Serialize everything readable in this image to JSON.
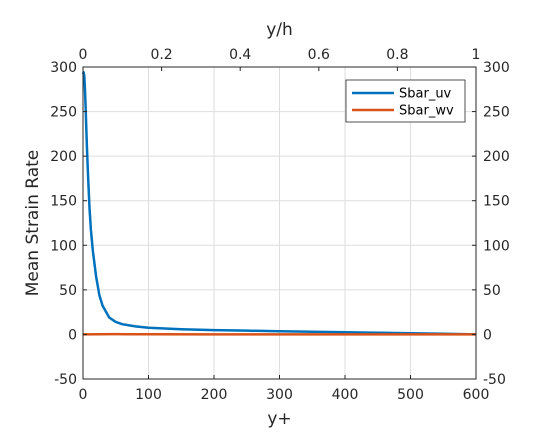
{
  "chart_data": {
    "type": "line",
    "xlabel": "y+",
    "ylabel": "Mean Strain Rate",
    "top_xlabel": "y/h",
    "xlim": [
      0,
      600
    ],
    "ylim": [
      -50,
      300
    ],
    "top_xlim": [
      0,
      1
    ],
    "xticks": [
      0,
      100,
      200,
      300,
      400,
      500,
      600
    ],
    "yticks": [
      -50,
      0,
      50,
      100,
      150,
      200,
      250,
      300
    ],
    "top_xticks": [
      0,
      0.2,
      0.4,
      0.6,
      0.8,
      1
    ],
    "top_xtick_labels": [
      "0",
      "0.2",
      "0.4",
      "0.6",
      "0.8",
      "1"
    ],
    "grid": true,
    "legend_position": "top-right",
    "series": [
      {
        "name": "Sbar_uv",
        "color": "#0072BD",
        "x": [
          0,
          1,
          2,
          3,
          4,
          5,
          6,
          8,
          10,
          12,
          15,
          20,
          25,
          30,
          40,
          50,
          60,
          80,
          100,
          150,
          200,
          250,
          300,
          350,
          400,
          450,
          500,
          550,
          600
        ],
        "y": [
          292,
          294,
          290,
          275,
          255,
          232,
          210,
          173,
          141,
          118,
          94,
          65,
          44,
          32,
          19,
          14,
          11.5,
          9,
          7.5,
          5.8,
          4.8,
          4.2,
          3.6,
          3.0,
          2.5,
          1.9,
          1.3,
          0.7,
          0
        ]
      },
      {
        "name": "Sbar_wv",
        "color": "#D95319",
        "x": [
          0,
          50,
          100,
          200,
          300,
          400,
          500,
          600
        ],
        "y": [
          0,
          0.3,
          0.2,
          0.1,
          0,
          0,
          0,
          0
        ]
      }
    ]
  }
}
